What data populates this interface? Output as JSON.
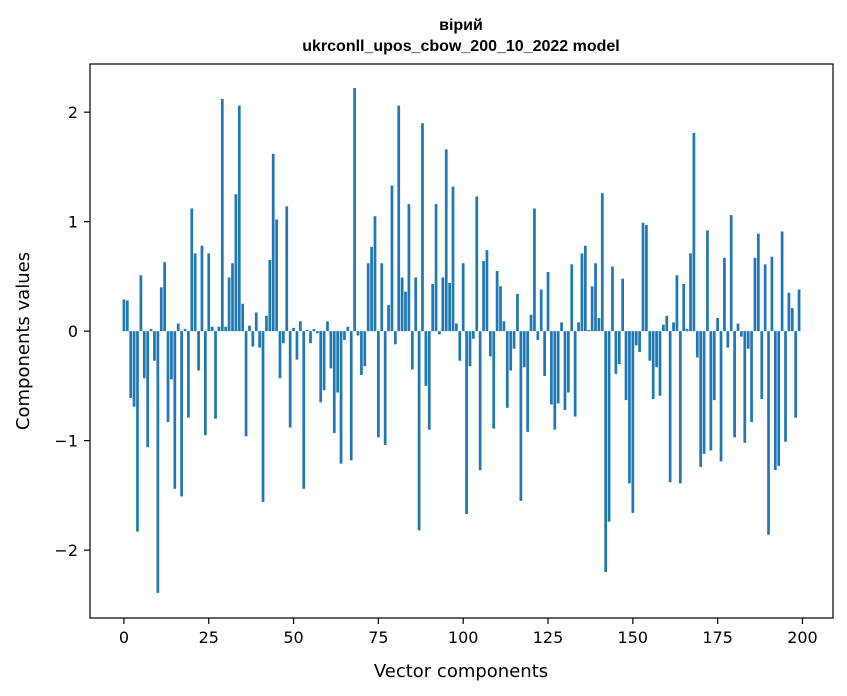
{
  "chart_data": {
    "type": "bar",
    "title": "вірий",
    "subtitle": "ukrconll_upos_cbow_200_10_2022 model",
    "xlabel": "Vector components",
    "ylabel": "Components values",
    "xlim": [
      -10,
      209
    ],
    "ylim": [
      -2.62,
      2.44
    ],
    "xticks": [
      0,
      25,
      50,
      75,
      100,
      125,
      150,
      175,
      200
    ],
    "yticks": [
      -2,
      -1,
      0,
      1,
      2
    ],
    "ytick_labels": [
      "−2",
      "−1",
      "0",
      "1",
      "2"
    ],
    "bar_color": "#1f77b4",
    "grid": false,
    "x": [
      0,
      1,
      2,
      3,
      4,
      5,
      6,
      7,
      8,
      9,
      10,
      11,
      12,
      13,
      14,
      15,
      16,
      17,
      18,
      19,
      20,
      21,
      22,
      23,
      24,
      25,
      26,
      27,
      28,
      29,
      30,
      31,
      32,
      33,
      34,
      35,
      36,
      37,
      38,
      39,
      40,
      41,
      42,
      43,
      44,
      45,
      46,
      47,
      48,
      49,
      50,
      51,
      52,
      53,
      54,
      55,
      56,
      57,
      58,
      59,
      60,
      61,
      62,
      63,
      64,
      65,
      66,
      67,
      68,
      69,
      70,
      71,
      72,
      73,
      74,
      75,
      76,
      77,
      78,
      79,
      80,
      81,
      82,
      83,
      84,
      85,
      86,
      87,
      88,
      89,
      90,
      91,
      92,
      93,
      94,
      95,
      96,
      97,
      98,
      99,
      100,
      101,
      102,
      103,
      104,
      105,
      106,
      107,
      108,
      109,
      110,
      111,
      112,
      113,
      114,
      115,
      116,
      117,
      118,
      119,
      120,
      121,
      122,
      123,
      124,
      125,
      126,
      127,
      128,
      129,
      130,
      131,
      132,
      133,
      134,
      135,
      136,
      137,
      138,
      139,
      140,
      141,
      142,
      143,
      144,
      145,
      146,
      147,
      148,
      149,
      150,
      151,
      152,
      153,
      154,
      155,
      156,
      157,
      158,
      159,
      160,
      161,
      162,
      163,
      164,
      165,
      166,
      167,
      168,
      169,
      170,
      171,
      172,
      173,
      174,
      175,
      176,
      177,
      178,
      179,
      180,
      181,
      182,
      183,
      184,
      185,
      186,
      187,
      188,
      189,
      190,
      191,
      192,
      193,
      194,
      195,
      196,
      197,
      198,
      199
    ],
    "values": [
      0.29,
      0.28,
      -0.61,
      -0.69,
      -1.83,
      0.51,
      -0.43,
      -1.06,
      0.02,
      -0.27,
      -2.39,
      0.4,
      0.63,
      -0.83,
      -0.44,
      -1.44,
      0.07,
      -1.51,
      0.02,
      -0.79,
      1.12,
      0.71,
      -0.36,
      0.78,
      -0.95,
      0.71,
      0.04,
      -0.8,
      0.04,
      2.12,
      0.04,
      0.49,
      0.62,
      1.25,
      2.06,
      0.25,
      -0.96,
      0.05,
      -0.14,
      0.17,
      -0.15,
      -1.56,
      0.14,
      0.65,
      1.62,
      1.02,
      -0.43,
      -0.11,
      1.14,
      -0.88,
      0.03,
      -0.26,
      0.09,
      -1.44,
      0.01,
      -0.11,
      0.02,
      -0.02,
      -0.65,
      -0.54,
      0.09,
      -0.34,
      -0.93,
      -0.56,
      -1.21,
      -0.08,
      0.04,
      -1.18,
      2.22,
      -0.04,
      -0.4,
      -0.32,
      0.62,
      0.77,
      1.05,
      -0.97,
      0.62,
      -1.04,
      0.24,
      1.33,
      -0.12,
      2.06,
      0.49,
      0.36,
      1.16,
      -0.35,
      0.49,
      -1.82,
      1.9,
      -0.5,
      -0.9,
      0.43,
      1.16,
      -0.03,
      0.49,
      1.66,
      0.44,
      1.32,
      0.07,
      -0.27,
      0.62,
      -1.67,
      -0.32,
      -0.07,
      1.23,
      -1.27,
      0.64,
      0.74,
      -0.23,
      -0.89,
      0.55,
      0.41,
      0.09,
      -0.7,
      -0.36,
      -0.16,
      0.34,
      -1.55,
      -0.33,
      -0.92,
      0.15,
      1.12,
      -0.08,
      0.38,
      -0.41,
      0.54,
      -0.67,
      -0.9,
      -0.66,
      0.08,
      -0.72,
      -0.56,
      0.61,
      -0.78,
      0.08,
      0.71,
      0.78,
      0.01,
      0.41,
      0.62,
      0.12,
      1.26,
      -2.2,
      -1.74,
      0.59,
      -0.39,
      -0.3,
      0.48,
      -0.63,
      -1.39,
      -1.66,
      -0.13,
      -0.19,
      0.99,
      0.97,
      -0.27,
      -0.62,
      -0.33,
      -0.59,
      0.06,
      0.14,
      -1.38,
      0.08,
      0.51,
      -1.39,
      0.43,
      0.02,
      0.71,
      1.81,
      -0.24,
      -1.24,
      -1.12,
      0.92,
      -1.09,
      -0.63,
      0.12,
      -1.19,
      0.67,
      -0.15,
      1.06,
      -0.97,
      0.07,
      -0.05,
      -1.02,
      -0.16,
      -0.83,
      0.67,
      0.89,
      -0.62,
      0.61,
      -1.86,
      0.68,
      -1.27,
      -1.23,
      0.91,
      -1.01,
      0.35,
      0.21,
      -0.79,
      0.38
    ]
  }
}
